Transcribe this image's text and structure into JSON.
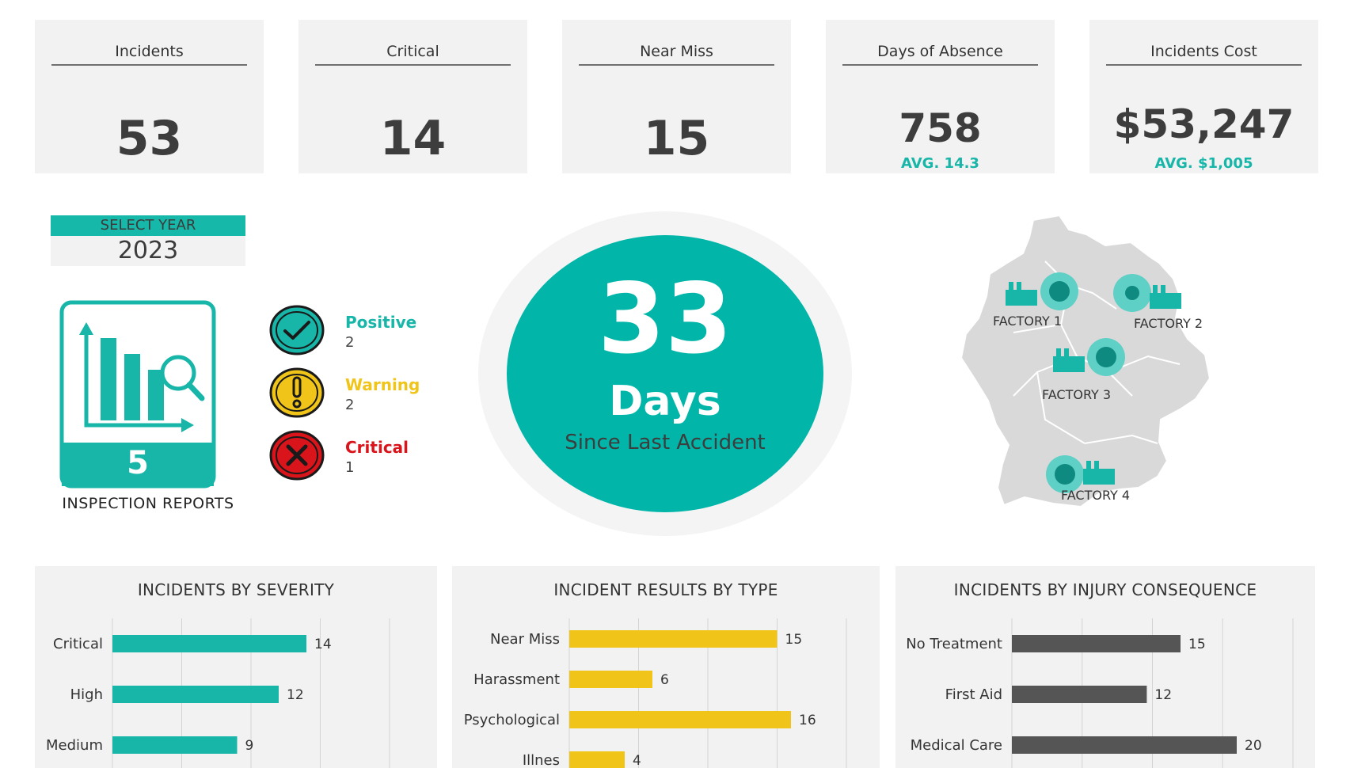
{
  "kpis": [
    {
      "title": "Incidents",
      "value": "53",
      "avg": ""
    },
    {
      "title": "Critical",
      "value": "14",
      "avg": ""
    },
    {
      "title": "Near Miss",
      "value": "15",
      "avg": ""
    },
    {
      "title": "Days of Absence",
      "value": "758",
      "avg": "AVG. 14.3"
    },
    {
      "title": "Incidents Cost",
      "value": "$53,247",
      "avg": "AVG. $1,005"
    }
  ],
  "year_selector": {
    "label": "SELECT YEAR",
    "value": "2023"
  },
  "inspection": {
    "count": "5",
    "label": "INSPECTION REPORTS"
  },
  "statuses": [
    {
      "name": "Positive",
      "count": "2",
      "color": "#17b6a8",
      "icon": "check-icon"
    },
    {
      "name": "Warning",
      "count": "2",
      "color": "#f0c419",
      "icon": "exclamation-icon"
    },
    {
      "name": "Critical",
      "count": "1",
      "color": "#d9141b",
      "icon": "x-icon"
    }
  ],
  "days_since": {
    "number": "33",
    "unit": "Days",
    "subtitle": "Since Last Accident"
  },
  "map": {
    "factories": [
      {
        "label": "FACTORY 1"
      },
      {
        "label": "FACTORY 2"
      },
      {
        "label": "FACTORY 3"
      },
      {
        "label": "FACTORY 4"
      }
    ]
  },
  "colors": {
    "teal": "#17b6a8",
    "yellow": "#f0c419",
    "dark": "#555555",
    "panel": "#f2f2f2"
  },
  "chart_data": [
    {
      "type": "bar",
      "orientation": "horizontal",
      "title": "INCIDENTS BY SEVERITY",
      "categories": [
        "Critical",
        "High",
        "Medium"
      ],
      "values": [
        14,
        12,
        9
      ],
      "color": "#17b6a8",
      "xlim": [
        0,
        20
      ],
      "grid": true
    },
    {
      "type": "bar",
      "orientation": "horizontal",
      "title": "INCIDENT RESULTS BY TYPE",
      "categories": [
        "Near Miss",
        "Harassment",
        "Psychological",
        "Illnes"
      ],
      "values": [
        15,
        6,
        16,
        4
      ],
      "color": "#f0c419",
      "xlim": [
        0,
        20
      ],
      "grid": true
    },
    {
      "type": "bar",
      "orientation": "horizontal",
      "title": "INCIDENTS BY INJURY CONSEQUENCE",
      "categories": [
        "No Treatment",
        "First Aid",
        "Medical Care"
      ],
      "values": [
        15,
        12,
        20
      ],
      "color": "#555555",
      "xlim": [
        0,
        25
      ],
      "grid": true
    }
  ]
}
